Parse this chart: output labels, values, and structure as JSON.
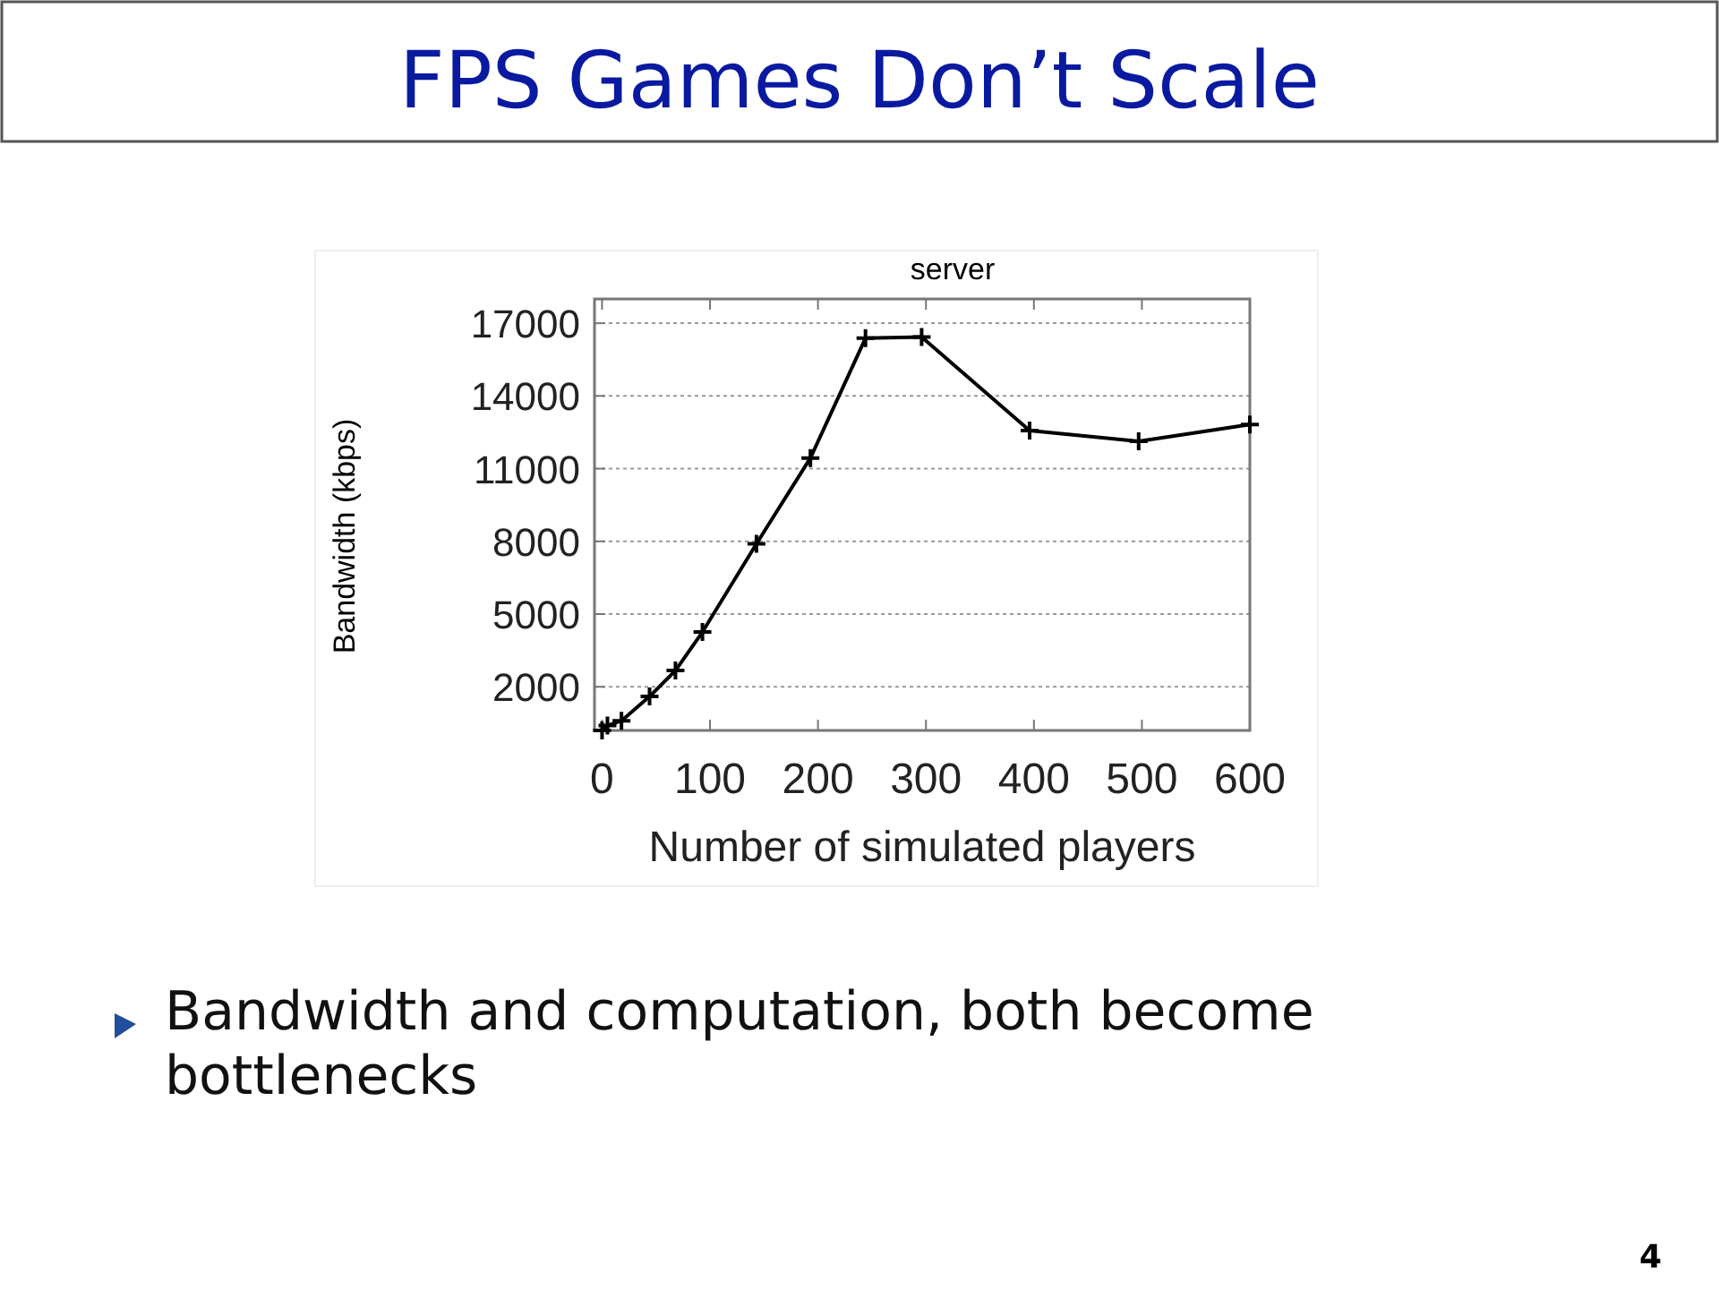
{
  "chart_data": {
    "type": "line",
    "title": "server",
    "xlabel": "Number of simulated players",
    "ylabel": "Bandwidth (kbps)",
    "annotations": [
      "FPS Games Don’t Scale",
      "Bandwidth and computation, both become bottlenecks",
      "4"
    ],
    "x": [
      0,
      5,
      18,
      44,
      68,
      93,
      143,
      193,
      244,
      296,
      396,
      497,
      600
    ],
    "series": [
      {
        "color": "#000000",
        "values": [
          200,
          400,
          600,
          1600,
          2670,
          4260,
          7900,
          11440,
          16380,
          16430,
          12570,
          12130,
          12820
        ]
      }
    ],
    "xlim": [
      -7,
      600
    ],
    "xticks": [
      0,
      100,
      200,
      300,
      400,
      500,
      600
    ],
    "ylim": [
      200,
      18000
    ],
    "yticks": [
      2000,
      5000,
      8000,
      11000,
      14000,
      17000
    ],
    "grid": "y",
    "marker": "cross",
    "line_style": "solid"
  }
}
